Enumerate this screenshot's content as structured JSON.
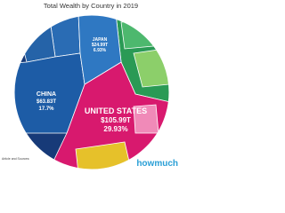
{
  "chart_data": {
    "type": "voronoi",
    "title": "Total Wealth by Country in 2019",
    "categories": [
      "UNITED STATES",
      "CHINA",
      "JAPAN"
    ],
    "values": [
      105.99,
      63.83,
      24.99
    ],
    "value_labels": [
      "$105.99T",
      "$63.83T",
      "$24.99T"
    ],
    "percents": [
      29.93,
      17.7,
      6.93
    ],
    "percent_labels": [
      "29.93%",
      "17.7%",
      "6.93%"
    ],
    "colors": [
      "#d8196e",
      "#1d5ca6",
      "#2f78c2"
    ],
    "brand": "howmuch",
    "source": "Article and Sources:"
  }
}
